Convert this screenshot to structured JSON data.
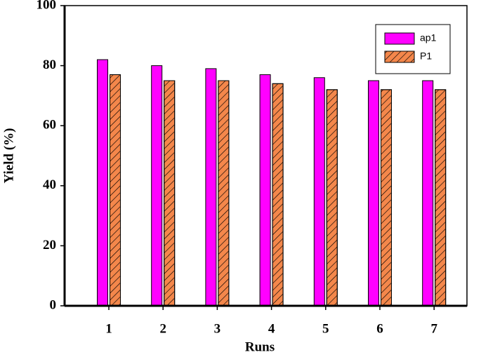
{
  "chart_data": {
    "type": "bar",
    "x_label": "Runs",
    "y_label": "Yield (%)",
    "categories": [
      "1",
      "2",
      "3",
      "4",
      "5",
      "6",
      "7"
    ],
    "series": [
      {
        "name": "ap1",
        "color": "#ff00ff",
        "values": [
          82,
          80,
          79,
          77,
          76,
          75,
          75
        ]
      },
      {
        "name": "P1",
        "color": "#f4874b",
        "pattern": "hatch",
        "values": [
          77,
          75,
          75,
          74,
          72,
          72,
          72
        ]
      }
    ],
    "ylim": [
      0,
      100
    ],
    "yticks": [
      0,
      20,
      40,
      60,
      80,
      100
    ],
    "legend": "upper right"
  }
}
